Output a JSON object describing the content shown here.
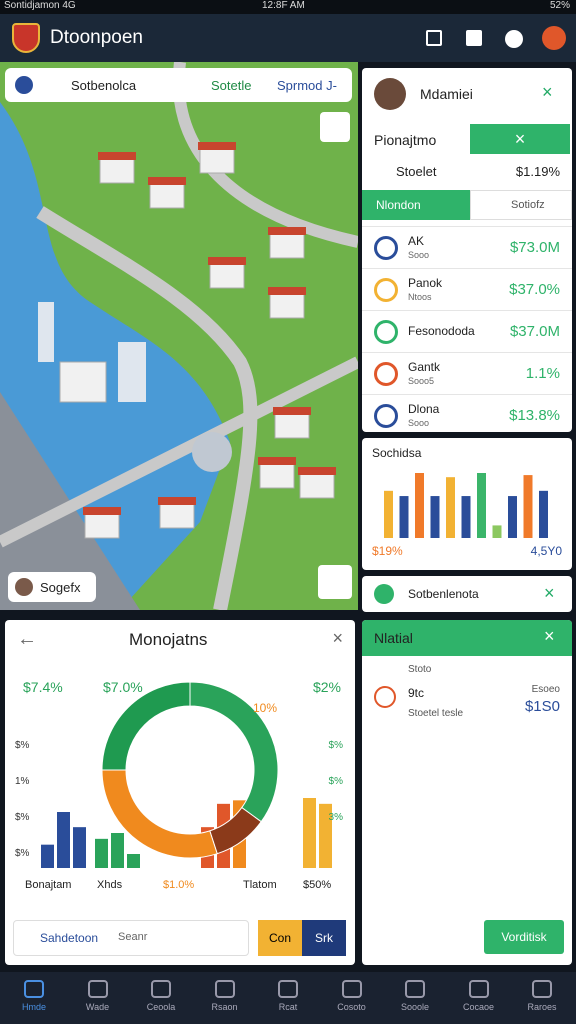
{
  "status_bar": {
    "carrier": "Sontidjamon 4G",
    "time": "12:8F AM",
    "battery": "52%"
  },
  "header": {
    "title": "Dtoonpoen"
  },
  "map": {
    "search_tabs": [
      "Sotbenolca",
      "Sotetle",
      "Sprmod J-"
    ],
    "location_label": "Sogefx"
  },
  "profile_panel": {
    "name": "Mdamiei",
    "section": "Pionajtmo",
    "stat_label": "Stoelet",
    "stat_value": "$1.19%",
    "tabs": [
      "Nlondon",
      "Sotiofz"
    ],
    "rows": [
      {
        "title": "AK",
        "subtitle": "Sooo",
        "value": "$73.0M"
      },
      {
        "title": "Panok",
        "subtitle": "Ntoos",
        "value": "$37.0%"
      },
      {
        "title": "Fesonododa",
        "value": "$37.0M"
      },
      {
        "title": "Gantk",
        "subtitle": "Sooo5",
        "value": "1.1%"
      },
      {
        "title": "Dlona",
        "subtitle": "Sooo",
        "value": "$13.8%"
      }
    ]
  },
  "mini_chart": {
    "title": "Sochidsa",
    "values": [
      45,
      40,
      62,
      40,
      58,
      40,
      62,
      12,
      40,
      60,
      45
    ],
    "colors": [
      "#f2b233",
      "#2a4d9a",
      "#f07a2a",
      "#2a4d9a",
      "#f2b233",
      "#2a4d9a",
      "#3bb56a",
      "#8cc860",
      "#2a4d9a",
      "#f07a2a",
      "#2a4d9a"
    ],
    "left_label": "$19%",
    "right_label": "4,5Y0"
  },
  "notice": {
    "text": "Sotbenlenota"
  },
  "analytics": {
    "title": "Monojatns",
    "top_labels": [
      "$7.4%",
      "$7.0%",
      "$2%"
    ],
    "ring_label": "10%",
    "left_axis": [
      "$%",
      "1%",
      "$%",
      "$%"
    ],
    "right_axis": [
      "$%",
      "$%",
      "3%"
    ],
    "bottom_labels": [
      "Bonajtam",
      "Xhds",
      "$1.0%",
      "Tlatom",
      "$50%"
    ],
    "donut": {
      "values": [
        35,
        10,
        30,
        25
      ],
      "colors": [
        "#2aa35a",
        "#8b3a1a",
        "#f08a1e",
        "#1f9a50"
      ]
    },
    "bars": {
      "values": [
        20,
        48,
        35,
        25,
        30,
        12,
        35,
        55,
        58,
        60,
        55
      ],
      "colors": [
        "#2a4d9a",
        "#2a4d9a",
        "#2a4d9a",
        "#2aa35a",
        "#2aa35a",
        "#2aa35a",
        "#e0572a",
        "#e0572a",
        "#f08a1e",
        "#f2b233",
        "#f2b233"
      ]
    },
    "search_text": "Sahdetoon",
    "search_hint": "Seanr",
    "buttons": [
      "Con",
      "Srk"
    ]
  },
  "detail_panel": {
    "title": "Nlatial",
    "item_title": "9tc",
    "item_subtitle": "Stoetel tesle",
    "item_note": "Stoto",
    "item_label": "Esoeo",
    "item_value": "$1S0",
    "button": "Vorditisk"
  },
  "nav": {
    "items": [
      "Hmde",
      "Wade",
      "Ceoola",
      "Rsaon",
      "Rcat",
      "Cosoto",
      "Sooole",
      "Cocaoe",
      "Raroes"
    ]
  }
}
